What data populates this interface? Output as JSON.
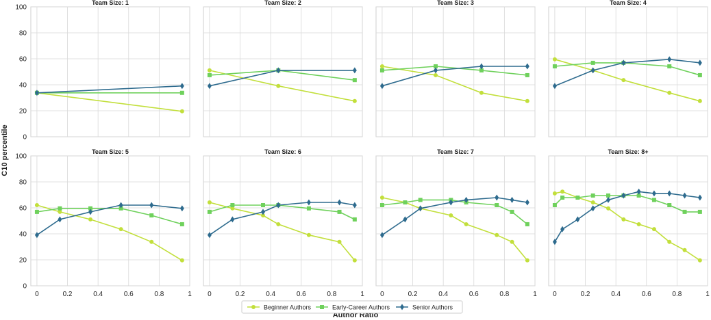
{
  "chart_data": {
    "type": "line",
    "ylabel": "C10  percentile",
    "xlabel": "Author Ratio",
    "ylim": [
      0,
      100
    ],
    "xlim": [
      0,
      1
    ],
    "yticks": [
      "0",
      "20",
      "40",
      "60",
      "80",
      "100"
    ],
    "xticks": [
      "0",
      "0.2",
      "0.4",
      "0.6",
      "0.8",
      "1"
    ],
    "grid": true,
    "legend_position": "bottom-center",
    "colors": {
      "Beginner Authors": "#c2df3b",
      "Early-Career Authors": "#6fd15c",
      "Senior Authors": "#2e6b8e"
    },
    "legend": [
      {
        "name": "Beginner Authors",
        "marker": "circle"
      },
      {
        "name": "Early-Career Authors",
        "marker": "square"
      },
      {
        "name": "Senior Authors",
        "marker": "diamond"
      }
    ],
    "panels": [
      {
        "title": "Team Size: 1",
        "series": [
          {
            "name": "Beginner Authors",
            "x": [
              0,
              0.95
            ],
            "y": [
              33.8,
              19.6
            ]
          },
          {
            "name": "Early-Career Authors",
            "x": [
              0,
              0.95
            ],
            "y": [
              33.8,
              33.8
            ]
          },
          {
            "name": "Senior Authors",
            "x": [
              0,
              0.95
            ],
            "y": [
              33.8,
              39.1
            ]
          }
        ]
      },
      {
        "title": "Team Size: 2",
        "series": [
          {
            "name": "Beginner Authors",
            "x": [
              0,
              0.45,
              0.95
            ],
            "y": [
              51.1,
              39.1,
              27.5
            ]
          },
          {
            "name": "Early-Career Authors",
            "x": [
              0,
              0.45,
              0.95
            ],
            "y": [
              47.4,
              51.1,
              43.6
            ]
          },
          {
            "name": "Senior Authors",
            "x": [
              0,
              0.45,
              0.95
            ],
            "y": [
              39.1,
              51.1,
              51.1
            ]
          }
        ]
      },
      {
        "title": "Team Size: 3",
        "series": [
          {
            "name": "Beginner Authors",
            "x": [
              0,
              0.35,
              0.65,
              0.95
            ],
            "y": [
              54.2,
              47.4,
              33.8,
              27.5
            ]
          },
          {
            "name": "Early-Career Authors",
            "x": [
              0,
              0.35,
              0.65,
              0.95
            ],
            "y": [
              51.1,
              54.2,
              51.1,
              47.4
            ]
          },
          {
            "name": "Senior Authors",
            "x": [
              0,
              0.35,
              0.65,
              0.95
            ],
            "y": [
              39.1,
              51.1,
              54.2,
              54.2
            ]
          }
        ]
      },
      {
        "title": "Team Size: 4",
        "series": [
          {
            "name": "Beginner Authors",
            "x": [
              0,
              0.25,
              0.45,
              0.75,
              0.95
            ],
            "y": [
              59.6,
              51.1,
              43.6,
              33.8,
              27.5
            ]
          },
          {
            "name": "Early-Career Authors",
            "x": [
              0,
              0.25,
              0.45,
              0.75,
              0.95
            ],
            "y": [
              54.2,
              56.9,
              56.9,
              54.2,
              47.4
            ]
          },
          {
            "name": "Senior Authors",
            "x": [
              0,
              0.25,
              0.45,
              0.75,
              0.95
            ],
            "y": [
              39.1,
              51.1,
              56.9,
              59.6,
              56.9
            ]
          }
        ]
      },
      {
        "title": "Team Size: 5",
        "series": [
          {
            "name": "Beginner Authors",
            "x": [
              0,
              0.15,
              0.35,
              0.55,
              0.75,
              0.95
            ],
            "y": [
              62.1,
              56.9,
              51.1,
              43.6,
              33.8,
              19.6
            ]
          },
          {
            "name": "Early-Career Authors",
            "x": [
              0,
              0.15,
              0.35,
              0.55,
              0.75,
              0.95
            ],
            "y": [
              56.9,
              59.6,
              59.6,
              59.6,
              54.2,
              47.4
            ]
          },
          {
            "name": "Senior Authors",
            "x": [
              0,
              0.15,
              0.35,
              0.55,
              0.75,
              0.95
            ],
            "y": [
              39.1,
              51.1,
              56.9,
              62.1,
              62.1,
              59.6
            ]
          }
        ]
      },
      {
        "title": "Team Size: 6",
        "series": [
          {
            "name": "Beginner Authors",
            "x": [
              0,
              0.15,
              0.35,
              0.45,
              0.65,
              0.85,
              0.95
            ],
            "y": [
              64.2,
              59.6,
              54.2,
              47.4,
              39.1,
              33.8,
              19.6
            ]
          },
          {
            "name": "Early-Career Authors",
            "x": [
              0,
              0.15,
              0.35,
              0.45,
              0.65,
              0.85,
              0.95
            ],
            "y": [
              56.9,
              62.1,
              62.1,
              62.1,
              59.6,
              56.9,
              51.1
            ]
          },
          {
            "name": "Senior Authors",
            "x": [
              0,
              0.15,
              0.35,
              0.45,
              0.65,
              0.85,
              0.95
            ],
            "y": [
              39.1,
              51.1,
              56.9,
              62.1,
              64.2,
              64.2,
              62.1
            ]
          }
        ]
      },
      {
        "title": "Team Size: 7",
        "series": [
          {
            "name": "Beginner Authors",
            "x": [
              0,
              0.15,
              0.25,
              0.45,
              0.55,
              0.75,
              0.85,
              0.95
            ],
            "y": [
              67.9,
              64.2,
              59.6,
              54.2,
              47.4,
              39.1,
              33.8,
              19.6
            ]
          },
          {
            "name": "Early-Career Authors",
            "x": [
              0,
              0.15,
              0.25,
              0.45,
              0.55,
              0.75,
              0.85,
              0.95
            ],
            "y": [
              62.1,
              64.2,
              66.1,
              66.1,
              64.2,
              62.1,
              56.9,
              47.4
            ]
          },
          {
            "name": "Senior Authors",
            "x": [
              0,
              0.15,
              0.25,
              0.45,
              0.55,
              0.75,
              0.85,
              0.95
            ],
            "y": [
              39.1,
              51.1,
              59.6,
              64.2,
              66.1,
              67.9,
              66.1,
              64.2
            ]
          }
        ]
      },
      {
        "title": "Team Size: 8+",
        "series": [
          {
            "name": "Beginner Authors",
            "x": [
              0,
              0.05,
              0.15,
              0.25,
              0.35,
              0.45,
              0.55,
              0.65,
              0.75,
              0.85,
              0.95
            ],
            "y": [
              71.1,
              72.5,
              67.9,
              64.2,
              59.6,
              51.1,
              47.4,
              43.6,
              33.8,
              27.5,
              19.6
            ]
          },
          {
            "name": "Early-Career Authors",
            "x": [
              0,
              0.05,
              0.15,
              0.25,
              0.35,
              0.45,
              0.55,
              0.65,
              0.75,
              0.85,
              0.95
            ],
            "y": [
              62.1,
              67.9,
              67.9,
              69.5,
              69.5,
              69.5,
              69.5,
              66.1,
              62.1,
              56.9,
              56.9
            ]
          },
          {
            "name": "Senior Authors",
            "x": [
              0,
              0.05,
              0.15,
              0.25,
              0.35,
              0.45,
              0.55,
              0.65,
              0.75,
              0.85,
              0.95
            ],
            "y": [
              33.8,
              43.6,
              51.1,
              59.6,
              66.1,
              69.5,
              72.5,
              71.1,
              71.1,
              69.5,
              67.9
            ]
          }
        ]
      }
    ]
  }
}
